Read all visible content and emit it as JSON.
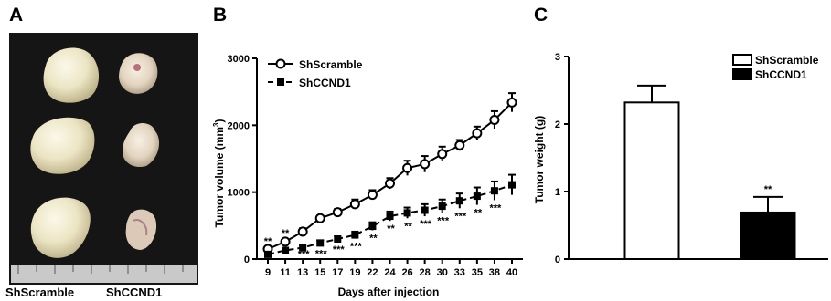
{
  "panels": {
    "a": "A",
    "b": "B",
    "c": "C"
  },
  "photo_labels": {
    "left": "ShScramble",
    "right": "ShCCND1"
  },
  "chart_data": [
    {
      "type": "line",
      "xlabel": "Days after injection",
      "ylabel": "Tumor volume (mm",
      "ylabel_sup": "3",
      "ylabel_close": ")",
      "ylim": [
        0,
        3000
      ],
      "yticks": [
        0,
        1000,
        2000,
        3000
      ],
      "x": [
        9,
        11,
        13,
        15,
        17,
        19,
        22,
        24,
        26,
        28,
        30,
        33,
        35,
        38,
        40
      ],
      "x_tick_labels": [
        "9",
        "11",
        "13",
        "15",
        "17",
        "19",
        "22",
        "24",
        "26",
        "28",
        "30",
        "33",
        "35",
        "38",
        "40"
      ],
      "legend_position": "top-left",
      "series": [
        {
          "name": "ShScramble",
          "marker": "open-circle",
          "values": [
            150,
            260,
            410,
            610,
            700,
            820,
            960,
            1130,
            1360,
            1420,
            1570,
            1700,
            1880,
            2080,
            2340
          ],
          "errors": [
            30,
            40,
            50,
            40,
            50,
            70,
            70,
            80,
            110,
            120,
            110,
            80,
            100,
            130,
            140
          ]
        },
        {
          "name": "ShCCND1",
          "marker": "filled-square",
          "values": [
            70,
            130,
            170,
            240,
            300,
            360,
            490,
            640,
            690,
            730,
            790,
            870,
            940,
            1020,
            1110
          ],
          "errors": [
            20,
            30,
            30,
            40,
            40,
            50,
            60,
            70,
            80,
            90,
            100,
            110,
            130,
            140,
            150
          ]
        }
      ],
      "significance_top": [
        "**",
        "**"
      ],
      "significance_bottom": [
        "***",
        "***",
        "***",
        "***",
        "**",
        "**",
        "**",
        "***",
        "***",
        "***",
        "**",
        "***"
      ]
    },
    {
      "type": "bar",
      "ylabel": "Tumor weight (g)",
      "ylim": [
        0,
        3
      ],
      "yticks": [
        0,
        1,
        2,
        3
      ],
      "categories": [
        "ShScramble",
        "ShCCND1"
      ],
      "values": [
        2.32,
        0.69
      ],
      "errors": [
        0.25,
        0.23
      ],
      "significance": [
        "",
        "**"
      ],
      "colors": [
        "#ffffff",
        "#000000"
      ],
      "legend_position": "top-right"
    }
  ]
}
